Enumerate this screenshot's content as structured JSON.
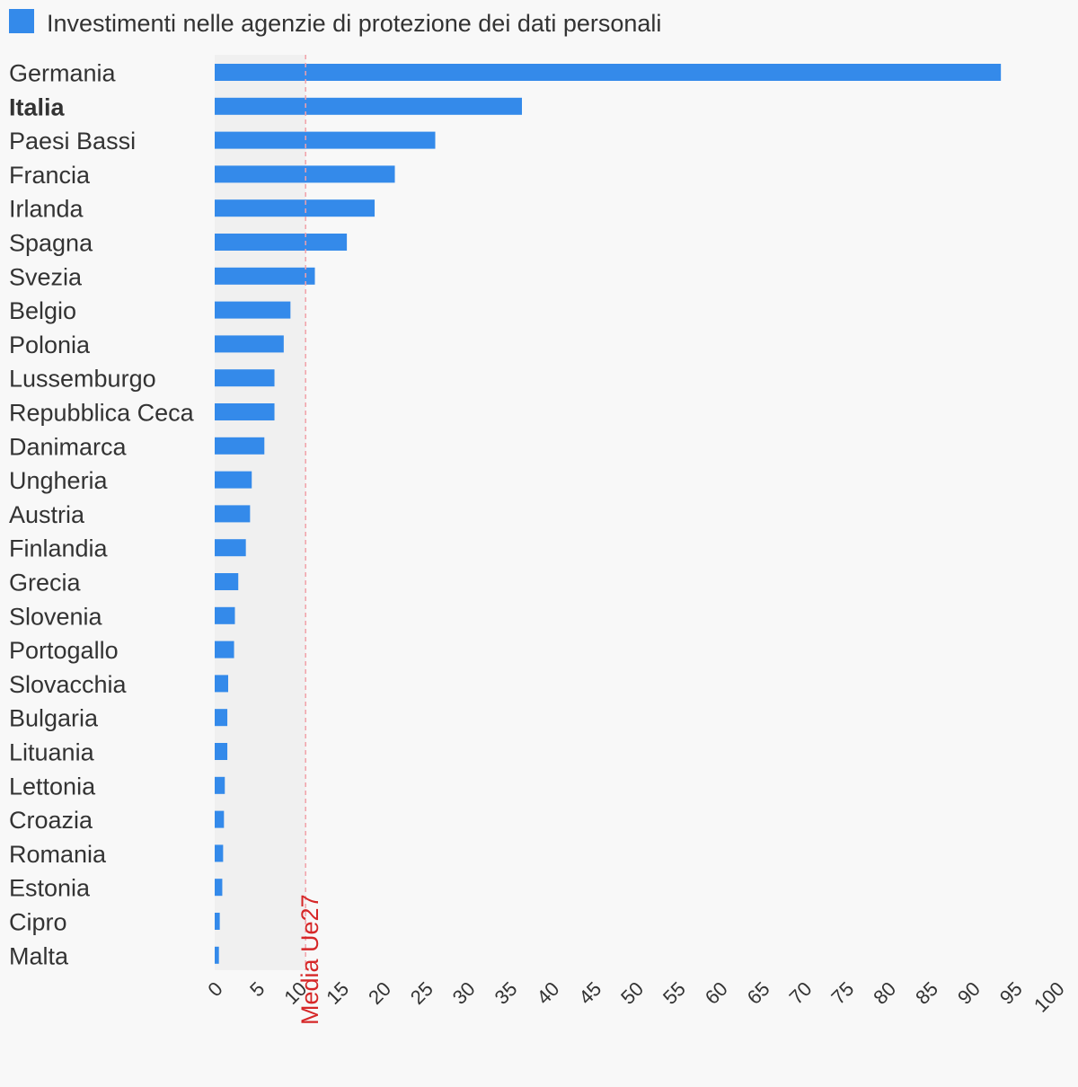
{
  "chart_data": {
    "type": "bar",
    "orientation": "horizontal",
    "title": "",
    "xlabel": "",
    "ylabel": "",
    "legend": {
      "placement": "top-left",
      "entries": [
        "Investimenti nelle agenzie di protezione dei dati personali"
      ]
    },
    "series": [
      {
        "name": "Investimenti nelle agenzie di protezione dei dati personali",
        "color": "#348aea",
        "values": [
          93.4,
          36.5,
          26.2,
          21.4,
          19.0,
          15.7,
          11.9,
          9.0,
          8.2,
          7.1,
          7.1,
          5.9,
          4.4,
          4.2,
          3.7,
          2.8,
          2.4,
          2.3,
          1.6,
          1.5,
          1.5,
          1.2,
          1.1,
          1.0,
          0.9,
          0.6,
          0.5
        ]
      }
    ],
    "categories": [
      "Germania",
      "Italia",
      "Paesi Bassi",
      "Francia",
      "Irlanda",
      "Spagna",
      "Svezia",
      "Belgio",
      "Polonia",
      "Lussemburgo",
      "Repubblica Ceca",
      "Danimarca",
      "Ungheria",
      "Austria",
      "Finlandia",
      "Grecia",
      "Slovenia",
      "Portogallo",
      "Slovacchia",
      "Bulgaria",
      "Lituania",
      "Lettonia",
      "Croazia",
      "Romania",
      "Estonia",
      "Cipro",
      "Malta"
    ],
    "highlight_category": "Italia",
    "xlim": [
      0,
      100
    ],
    "x_ticks": [
      0,
      5,
      10,
      15,
      20,
      25,
      30,
      35,
      40,
      45,
      50,
      55,
      60,
      65,
      70,
      75,
      80,
      85,
      90,
      95,
      100
    ],
    "reference_line": {
      "label": "Media Ue27",
      "value": 10.8,
      "color": "#d62728",
      "shaded_below": true
    },
    "grid": false
  }
}
